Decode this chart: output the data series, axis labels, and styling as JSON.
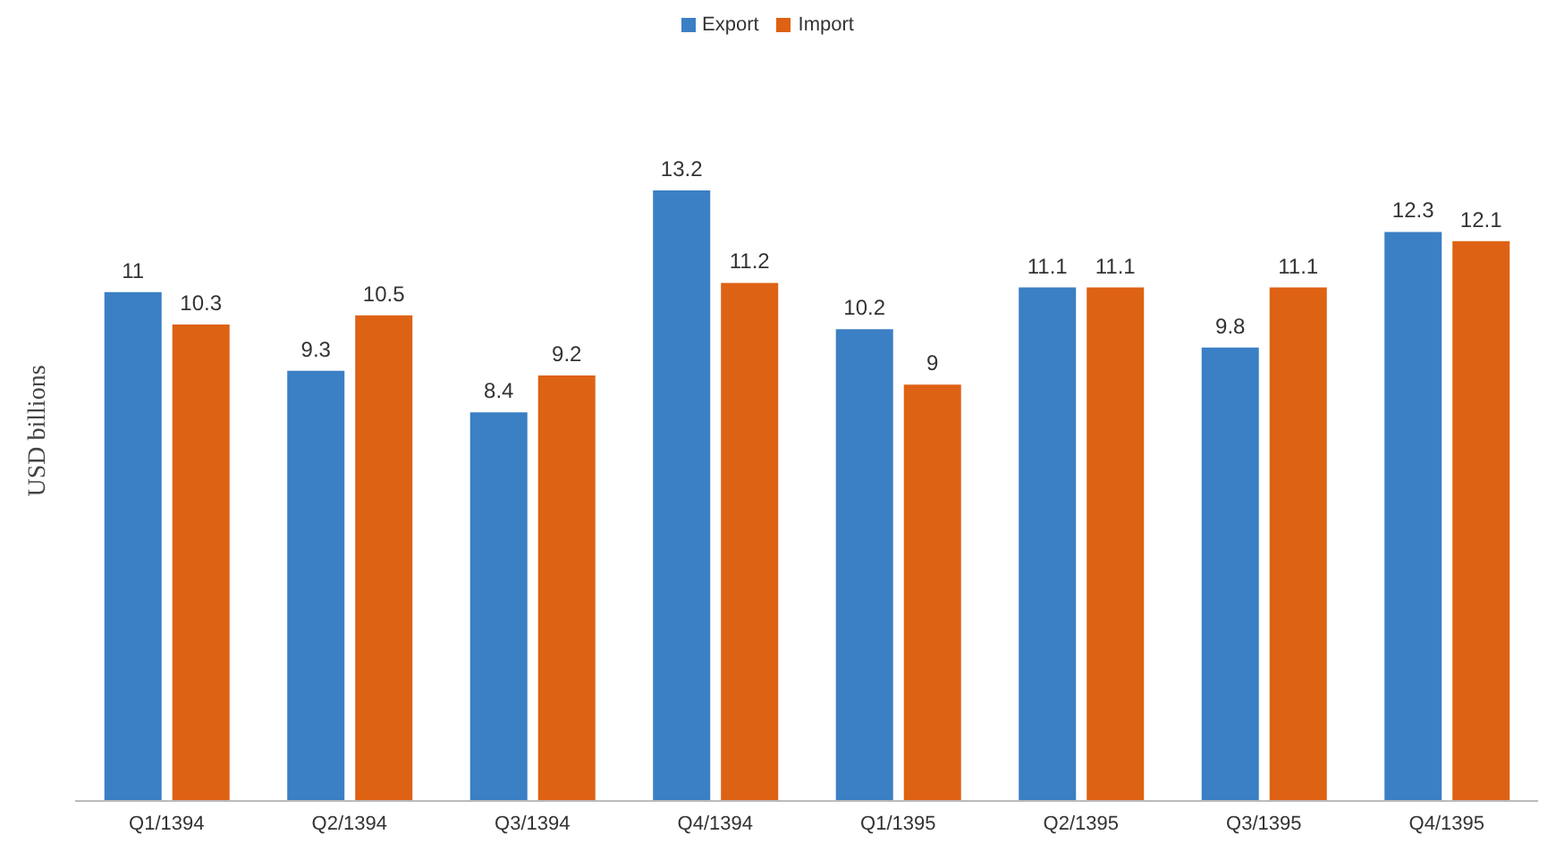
{
  "chart_data": {
    "type": "bar",
    "ylabel": "USD billions",
    "categories": [
      "Q1/1394",
      "Q2/1394",
      "Q3/1394",
      "Q4/1394",
      "Q1/1395",
      "Q2/1395",
      "Q3/1395",
      "Q4/1395"
    ],
    "series": [
      {
        "name": "Export",
        "color": "#3b7fc4",
        "values": [
          11,
          9.3,
          8.4,
          13.2,
          10.2,
          11.1,
          9.8,
          12.3
        ]
      },
      {
        "name": "Import",
        "color": "#dd6214",
        "values": [
          10.3,
          10.5,
          9.2,
          11.2,
          9,
          11.1,
          11.1,
          12.1
        ]
      }
    ],
    "data_labels": true,
    "legend": "top",
    "grid": false
  }
}
